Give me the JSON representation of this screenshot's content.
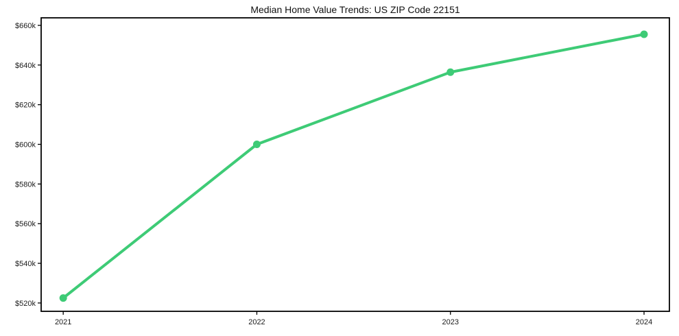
{
  "page": {
    "background": "#ffffff"
  },
  "chart_data": {
    "type": "line",
    "title": "Median Home Value Trends: US ZIP Code 22151",
    "xlabel": "",
    "ylabel": "",
    "x": [
      2021,
      2022,
      2023,
      2024
    ],
    "values": [
      522500,
      600000,
      636400,
      655500
    ],
    "xtick_labels": [
      "2021",
      "2022",
      "2023",
      "2024"
    ],
    "ytick_values": [
      520000,
      540000,
      560000,
      580000,
      600000,
      620000,
      640000,
      660000
    ],
    "ytick_labels": [
      "$520k",
      "$540k",
      "$560k",
      "$580k",
      "$600k",
      "$620k",
      "$640k",
      "$660k"
    ],
    "xlim": [
      2020.886,
      2024.131
    ],
    "ylim": [
      515800,
      663800
    ],
    "grid": false,
    "legend": "none",
    "line_color": "#3ecb76",
    "marker": "circle",
    "line_width": 4,
    "marker_radius": 5.5,
    "axis_color": "#000000",
    "tick_text_color": "#1a1a1a"
  }
}
